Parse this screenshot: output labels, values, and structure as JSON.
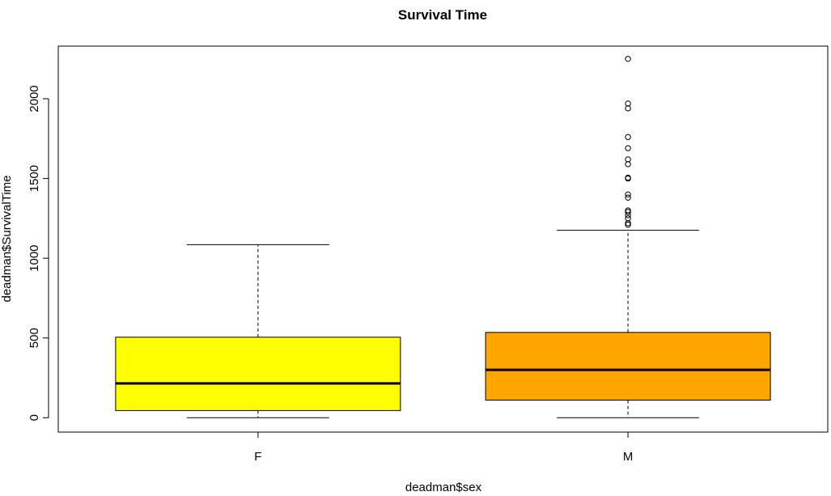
{
  "chart_data": {
    "type": "boxplot",
    "title": "Survival Time",
    "xlabel": "deadman$sex",
    "ylabel": "deadman$SurvivalTime",
    "ylim": [
      -90,
      2330
    ],
    "yticks": [
      0,
      500,
      1000,
      1500,
      2000
    ],
    "categories": [
      "F",
      "M"
    ],
    "boxes": [
      {
        "category": "F",
        "color": "#ffff00",
        "whisker_low": 0,
        "q1": 45,
        "median": 215,
        "q3": 505,
        "whisker_high": 1085,
        "outliers": []
      },
      {
        "category": "M",
        "color": "#ffa500",
        "whisker_low": 0,
        "q1": 110,
        "median": 300,
        "q3": 535,
        "whisker_high": 1175,
        "outliers": [
          1210,
          1220,
          1250,
          1270,
          1290,
          1300,
          1380,
          1400,
          1500,
          1505,
          1590,
          1620,
          1690,
          1760,
          1940,
          1970,
          2250
        ]
      }
    ]
  }
}
